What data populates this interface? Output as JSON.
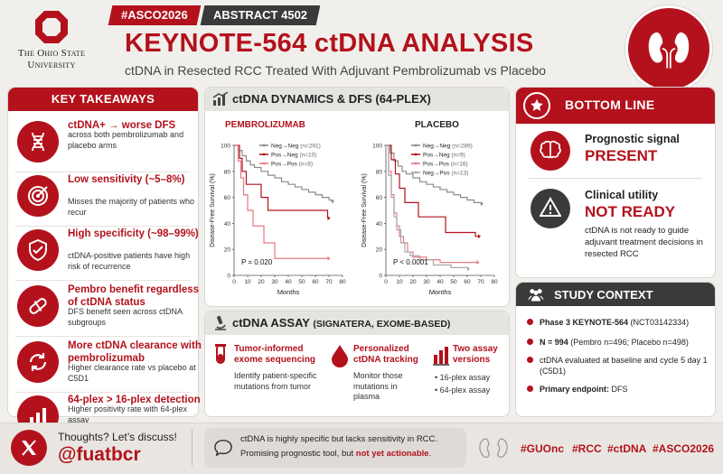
{
  "logo": {
    "line1": "The Ohio State",
    "line2": "University"
  },
  "tags": {
    "conference": "#ASCO2026",
    "abstract": "ABSTRACT 4502"
  },
  "title": {
    "main": "KEYNOTE-564 ctDNA ANALYSIS",
    "subtitle": "ctDNA in Resected RCC Treated With Adjuvant Pembrolizumab vs Placebo"
  },
  "takeaways": {
    "header": "KEY TAKEAWAYS",
    "items": [
      {
        "title": "ctDNA+ → worse DFS",
        "desc": "across both pembrolizumab and placebo arms",
        "icon": "dna-icon"
      },
      {
        "title": "Low sensitivity (~5–8%)",
        "desc": "Misses the majority of patients who recur",
        "icon": "target-icon"
      },
      {
        "title": "High specificity (~98–99%)",
        "desc": "ctDNA-positive patients have high risk of recurrence",
        "icon": "shield-check-icon"
      },
      {
        "title": "Pembro benefit regardless of ctDNA status",
        "desc": "DFS benefit seen across ctDNA subgroups",
        "icon": "pill-icon"
      },
      {
        "title": "More ctDNA clearance with pembrolizumab",
        "desc": "Higher clearance rate vs placebo at C5D1",
        "icon": "refresh-icon"
      },
      {
        "title": "64-plex > 16-plex detection",
        "desc": "Higher positivity rate with 64-plex assay",
        "icon": "bar-chart-icon"
      }
    ]
  },
  "dynamics": {
    "header": "ctDNA DYNAMICS & DFS (64-PLEX)"
  },
  "chart_data": [
    {
      "type": "line",
      "title": "PEMBROLIZUMAB",
      "xlabel": "Months",
      "ylabel": "Disease-Free Survival (%)",
      "xlim": [
        0,
        80
      ],
      "ylim": [
        0,
        100
      ],
      "xticks": [
        0,
        10,
        20,
        30,
        40,
        50,
        60,
        70,
        80
      ],
      "yticks": [
        0,
        20,
        40,
        60,
        80,
        100
      ],
      "pvalue": "P = 0.020",
      "series": [
        {
          "name": "Neg→Neg",
          "n": "(n=291)",
          "color": "#8a8a8a",
          "points": [
            [
              0,
              100
            ],
            [
              3,
              96
            ],
            [
              6,
              92
            ],
            [
              9,
              88
            ],
            [
              12,
              85
            ],
            [
              15,
              83
            ],
            [
              20,
              80
            ],
            [
              25,
              77
            ],
            [
              30,
              75
            ],
            [
              35,
              72
            ],
            [
              40,
              70
            ],
            [
              45,
              68
            ],
            [
              50,
              66
            ],
            [
              55,
              64
            ],
            [
              60,
              62
            ],
            [
              65,
              60
            ],
            [
              70,
              58
            ],
            [
              72,
              57
            ]
          ]
        },
        {
          "name": "Pos→Neg",
          "n": "(n=10)",
          "color": "#b3121c",
          "points": [
            [
              0,
              100
            ],
            [
              4,
              90
            ],
            [
              6,
              80
            ],
            [
              9,
              70
            ],
            [
              15,
              70
            ],
            [
              20,
              60
            ],
            [
              25,
              50
            ],
            [
              35,
              50
            ],
            [
              69,
              50
            ],
            [
              69,
              44
            ]
          ]
        },
        {
          "name": "Pos→Pos",
          "n": "(n=8)",
          "color": "#e47a82",
          "points": [
            [
              0,
              100
            ],
            [
              3,
              88
            ],
            [
              5,
              75
            ],
            [
              7,
              62
            ],
            [
              10,
              50
            ],
            [
              14,
              38
            ],
            [
              20,
              38
            ],
            [
              22,
              25
            ],
            [
              28,
              25
            ],
            [
              30,
              13
            ],
            [
              69,
              13
            ]
          ]
        }
      ]
    },
    {
      "type": "line",
      "title": "PLACEBO",
      "xlabel": "Months",
      "ylabel": "Disease-Free Survival (%)",
      "xlim": [
        0,
        80
      ],
      "ylim": [
        0,
        100
      ],
      "xticks": [
        0,
        10,
        20,
        30,
        40,
        50,
        60,
        70,
        80
      ],
      "yticks": [
        0,
        20,
        40,
        60,
        80,
        100
      ],
      "pvalue": "P < 0.0001",
      "series": [
        {
          "name": "Neg→Neg",
          "n": "(n=289)",
          "color": "#8a8a8a",
          "points": [
            [
              0,
              100
            ],
            [
              3,
              94
            ],
            [
              6,
              88
            ],
            [
              9,
              84
            ],
            [
              12,
              80
            ],
            [
              15,
              78
            ],
            [
              20,
              75
            ],
            [
              25,
              72
            ],
            [
              30,
              70
            ],
            [
              35,
              68
            ],
            [
              40,
              66
            ],
            [
              45,
              64
            ],
            [
              50,
              62
            ],
            [
              55,
              60
            ],
            [
              60,
              58
            ],
            [
              65,
              56
            ],
            [
              70,
              55
            ]
          ]
        },
        {
          "name": "Pos→Neg",
          "n": "(n=9)",
          "color": "#b3121c",
          "points": [
            [
              0,
              100
            ],
            [
              4,
              89
            ],
            [
              7,
              78
            ],
            [
              10,
              67
            ],
            [
              14,
              56
            ],
            [
              20,
              56
            ],
            [
              24,
              45
            ],
            [
              40,
              45
            ],
            [
              44,
              33
            ],
            [
              62,
              33
            ],
            [
              66,
              30
            ],
            [
              68,
              30
            ]
          ]
        },
        {
          "name": "Pos→Pos",
          "n": "(n=16)",
          "color": "#e47a82",
          "points": [
            [
              0,
              100
            ],
            [
              2,
              80
            ],
            [
              4,
              62
            ],
            [
              6,
              48
            ],
            [
              8,
              38
            ],
            [
              10,
              30
            ],
            [
              13,
              25
            ],
            [
              16,
              18
            ],
            [
              20,
              14
            ],
            [
              30,
              12
            ],
            [
              40,
              10
            ],
            [
              60,
              10
            ],
            [
              67,
              10
            ]
          ]
        },
        {
          "name": "Neg→Pos",
          "n": "(n=13)",
          "color": "#a8a8a8",
          "points": [
            [
              0,
              100
            ],
            [
              2,
              77
            ],
            [
              4,
              60
            ],
            [
              6,
              45
            ],
            [
              8,
              35
            ],
            [
              11,
              25
            ],
            [
              14,
              18
            ],
            [
              18,
              15
            ],
            [
              25,
              12
            ],
            [
              35,
              8
            ],
            [
              48,
              6
            ],
            [
              60,
              5
            ]
          ]
        }
      ]
    }
  ],
  "assay": {
    "header": "ctDNA ASSAY",
    "header_sub": "(SIGNATERA, EXOME-BASED)",
    "items": [
      {
        "title": "Tumor-informed exome sequencing",
        "desc": "Identify patient-specific mutations from tumor",
        "icon": "test-tube-icon"
      },
      {
        "title": "Personalized ctDNA tracking",
        "desc": "Monitor those mutations in plasma",
        "icon": "blood-drop-icon"
      },
      {
        "title": "Two assay versions",
        "bullets": [
          "16-plex assay",
          "64-plex assay"
        ],
        "icon": "bar-chart-icon"
      }
    ]
  },
  "bottom_line": {
    "header": "BOTTOM LINE",
    "prog_title": "Prognostic signal",
    "prog_status": "PRESENT",
    "util_title": "Clinical utility",
    "util_status": "NOT READY",
    "util_desc": "ctDNA is not ready to guide adjuvant treatment decisions in resected RCC"
  },
  "study": {
    "header": "STUDY CONTEXT",
    "items": [
      {
        "bold": "Phase 3 KEYNOTE-564",
        "rest": " (NCT03142334)"
      },
      {
        "bold": "N = 994",
        "rest": " (Pembro n=496; Placebo n=498)"
      },
      {
        "bold": "",
        "rest": "ctDNA evaluated at baseline and cycle 5 day 1 (C5D1)"
      },
      {
        "bold": "Primary endpoint:",
        "rest": " DFS"
      }
    ]
  },
  "footer": {
    "discuss": "Thoughts? Let’s discuss!",
    "handle": "@fuatbcr",
    "quote_line1": "ctDNA is highly specific but lacks sensitivity in RCC.",
    "quote_line2a": "Promising prognostic tool, but ",
    "quote_line2b": "not yet actionable",
    ".": ".",
    "quote_end": ".",
    "hashtags": [
      "#GUOnc",
      "#RCC",
      "#ctDNA",
      "#ASCO2026"
    ]
  },
  "colors": {
    "brand": "#b3121c",
    "grey": "#8a8a8a",
    "pink": "#e47a82"
  }
}
